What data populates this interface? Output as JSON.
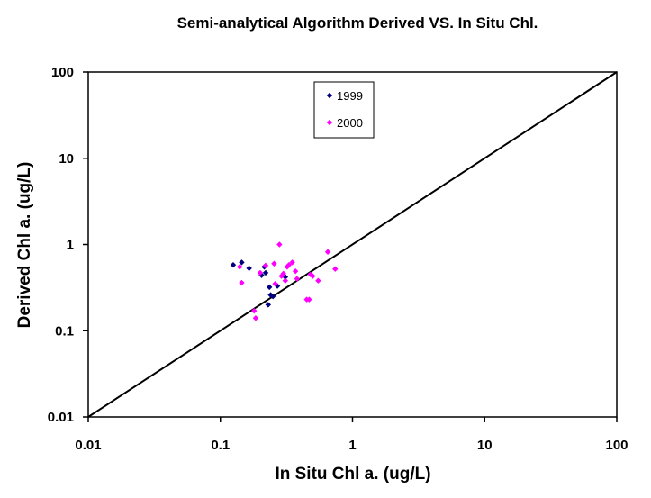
{
  "chart_data": {
    "type": "scatter",
    "title": "Semi-analytical Algorithm Derived VS. In Situ Chl.",
    "xlabel": "In Situ Chl a. (ug/L)",
    "ylabel": "Derived Chl a. (ug/L)",
    "xscale": "log",
    "yscale": "log",
    "xlim": [
      0.01,
      100
    ],
    "ylim": [
      0.01,
      100
    ],
    "xticks": [
      "0.01",
      "0.1",
      "1",
      "10",
      "100"
    ],
    "yticks": [
      "0.01",
      "0.1",
      "1",
      "10",
      "100"
    ],
    "grid": false,
    "legend_position": "top-center",
    "reference_line": {
      "type": "1:1",
      "color": "#000000"
    },
    "series": [
      {
        "name": "1999",
        "color": "#000080",
        "marker": "diamond",
        "points": [
          [
            0.125,
            0.58
          ],
          [
            0.145,
            0.62
          ],
          [
            0.165,
            0.53
          ],
          [
            0.205,
            0.44
          ],
          [
            0.215,
            0.55
          ],
          [
            0.22,
            0.47
          ],
          [
            0.235,
            0.32
          ],
          [
            0.24,
            0.26
          ],
          [
            0.25,
            0.25
          ],
          [
            0.23,
            0.2
          ],
          [
            0.27,
            0.33
          ],
          [
            0.31,
            0.42
          ]
        ]
      },
      {
        "name": "2000",
        "color": "#ff00ff",
        "marker": "diamond",
        "points": [
          [
            0.14,
            0.55
          ],
          [
            0.145,
            0.36
          ],
          [
            0.18,
            0.17
          ],
          [
            0.185,
            0.14
          ],
          [
            0.2,
            0.47
          ],
          [
            0.22,
            0.57
          ],
          [
            0.255,
            0.6
          ],
          [
            0.26,
            0.35
          ],
          [
            0.28,
            1.0
          ],
          [
            0.29,
            0.43
          ],
          [
            0.3,
            0.46
          ],
          [
            0.31,
            0.38
          ],
          [
            0.32,
            0.55
          ],
          [
            0.33,
            0.58
          ],
          [
            0.35,
            0.62
          ],
          [
            0.37,
            0.49
          ],
          [
            0.38,
            0.4
          ],
          [
            0.45,
            0.23
          ],
          [
            0.47,
            0.23
          ],
          [
            0.48,
            0.45
          ],
          [
            0.5,
            0.43
          ],
          [
            0.55,
            0.38
          ],
          [
            0.65,
            0.82
          ],
          [
            0.74,
            0.52
          ]
        ]
      }
    ]
  }
}
